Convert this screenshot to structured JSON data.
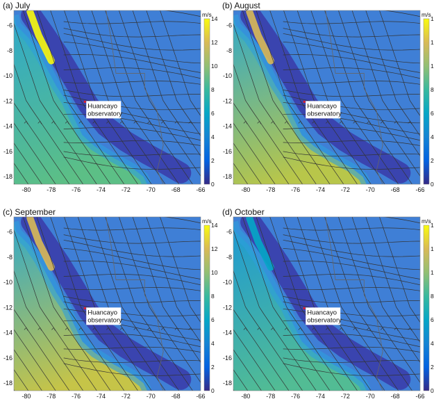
{
  "figure": {
    "panels": [
      {
        "label": "(a) July",
        "ocean_south": "#5cbf86",
        "ocean_north": "#2ea8cc",
        "jet": 13
      },
      {
        "label": "(b) August",
        "ocean_south": "#b8c64a",
        "ocean_north": "#2ea8cc",
        "jet": 12
      },
      {
        "label": "(c) September",
        "ocean_south": "#c6c448",
        "ocean_north": "#2ea8cc",
        "jet": 11
      },
      {
        "label": "(d) October",
        "ocean_south": "#52bc94",
        "ocean_north": "#1c98d6",
        "jet": 6
      }
    ],
    "station_label_line1": "Huancayo",
    "station_label_line2": "observatory",
    "station_lon": -75.3,
    "station_lat": -12.05,
    "colorbar": {
      "unit": "m/s",
      "ticks": [
        "0",
        "2",
        "4",
        "6",
        "8",
        "10",
        "12",
        "14"
      ],
      "range": [
        0,
        14
      ],
      "colormap": "parula"
    },
    "x_ticks": [
      "-80",
      "-78",
      "-76",
      "-74",
      "-72",
      "-70",
      "-68",
      "-66"
    ],
    "y_ticks": [
      "-6",
      "-8",
      "-10",
      "-12",
      "-14",
      "-16",
      "-18"
    ],
    "lon_range": [
      -81,
      -66
    ],
    "lat_range": [
      -18.6,
      -4.8
    ]
  }
}
